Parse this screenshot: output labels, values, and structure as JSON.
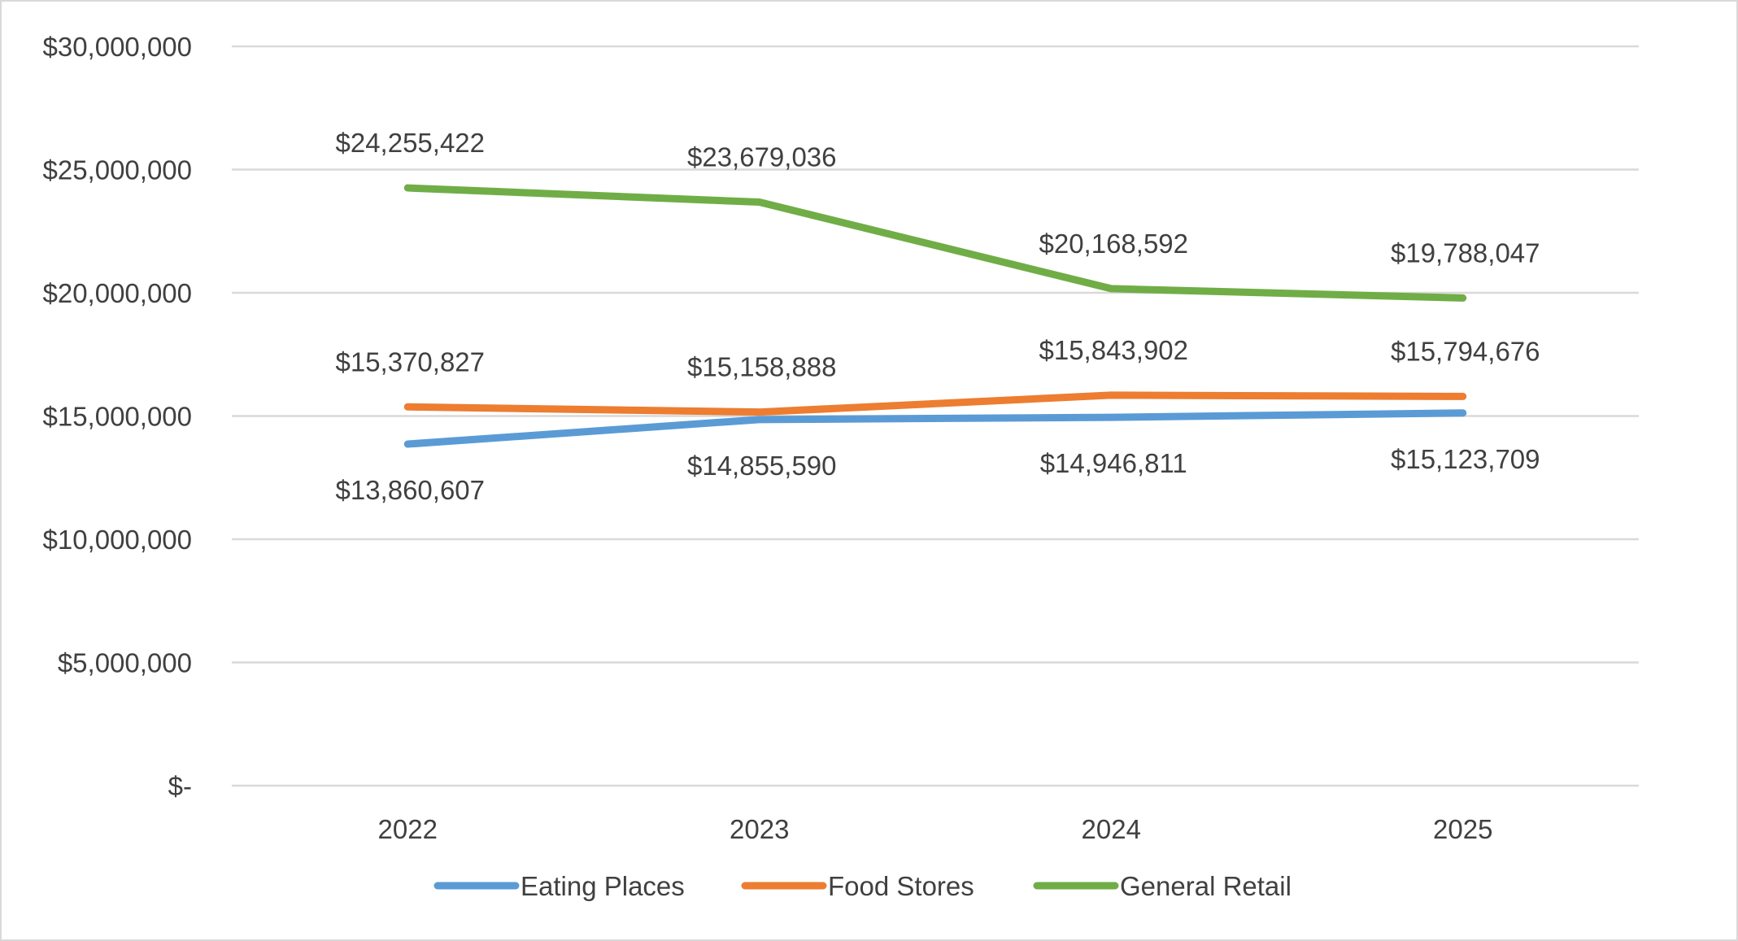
{
  "chart_data": {
    "type": "line",
    "title": "",
    "xlabel": "",
    "ylabel": "",
    "categories": [
      "2022",
      "2023",
      "2024",
      "2025"
    ],
    "ylim": [
      0,
      30000000
    ],
    "yticks": [
      0,
      5000000,
      10000000,
      15000000,
      20000000,
      25000000,
      30000000
    ],
    "ytick_labels": [
      "$-",
      "$5,000,000",
      "$10,000,000",
      "$15,000,000",
      "$20,000,000",
      "$25,000,000",
      "$30,000,000"
    ],
    "grid": "horizontal",
    "legend_position": "bottom",
    "series": [
      {
        "name": "Eating Places",
        "color": "#5b9bd5",
        "values": [
          13860607,
          14855590,
          14946811,
          15123709
        ],
        "labels": [
          "$13,860,607",
          "$14,855,590",
          "$14,946,811",
          "$15,123,709"
        ],
        "label_position": "below"
      },
      {
        "name": "Food Stores",
        "color": "#ed7d31",
        "values": [
          15370827,
          15158888,
          15843902,
          15794676
        ],
        "labels": [
          "$15,370,827",
          "$15,158,888",
          "$15,843,902",
          "$15,794,676"
        ],
        "label_position": "above"
      },
      {
        "name": "General Retail",
        "color": "#70ad47",
        "values": [
          24255422,
          23679036,
          20168592,
          19788047
        ],
        "labels": [
          "$24,255,422",
          "$23,679,036",
          "$20,168,592",
          "$19,788,047"
        ],
        "label_position": "above"
      }
    ]
  }
}
